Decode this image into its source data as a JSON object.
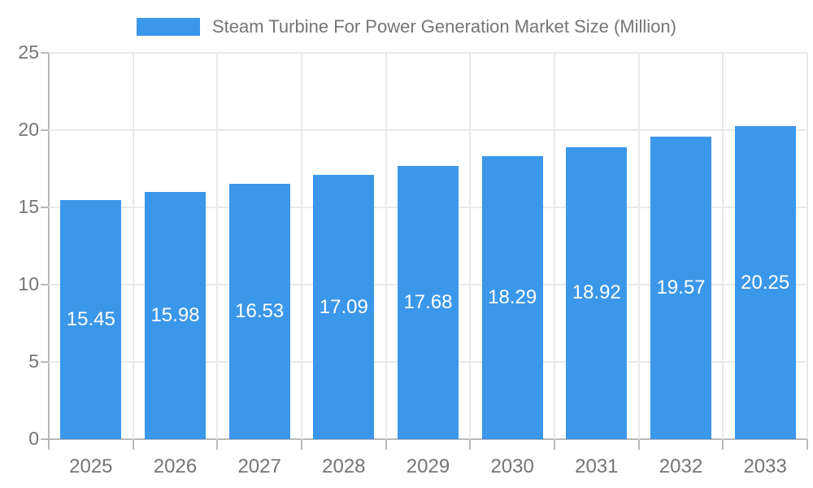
{
  "chart_data": {
    "type": "bar",
    "title": "Steam Turbine For Power Generation Market Size (Million)",
    "categories": [
      "2025",
      "2026",
      "2027",
      "2028",
      "2029",
      "2030",
      "2031",
      "2032",
      "2033"
    ],
    "values": [
      15.45,
      15.98,
      16.53,
      17.09,
      17.68,
      18.29,
      18.92,
      19.57,
      20.25
    ],
    "series_name": "Steam Turbine For Power Generation Market Size (Million)",
    "xlabel": "",
    "ylabel": "",
    "ylim": [
      0,
      25
    ],
    "yticks": [
      0,
      5,
      10,
      15,
      20,
      25
    ],
    "grid": true,
    "legend_position": "top",
    "bar_color": "#3b97ea",
    "value_label_color": "#ffffff",
    "axis_text_color": "#757575",
    "grid_color": "#e9e9e9",
    "axis_line_color": "#b9b9b9",
    "background_color": "#ffffff"
  }
}
